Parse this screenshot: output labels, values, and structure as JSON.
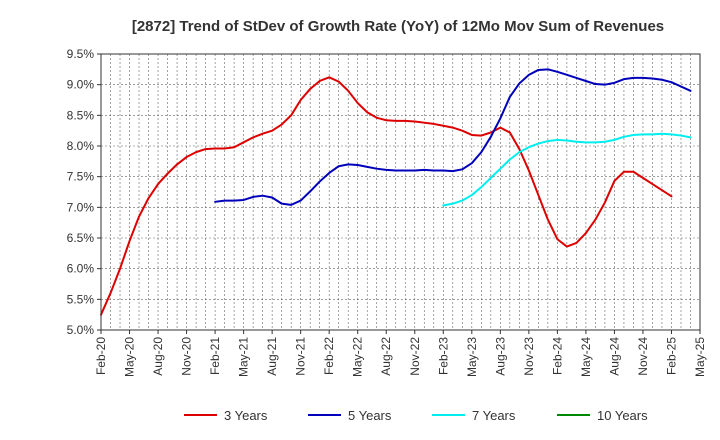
{
  "chart_data": {
    "type": "line",
    "title": "[2872]  Trend of StDev of Growth Rate (YoY) of 12Mo Mov Sum of Revenues",
    "xlabel": "",
    "ylabel": "",
    "ylim": [
      5.0,
      9.5
    ],
    "y_ticks": [
      "5.0%",
      "5.5%",
      "6.0%",
      "6.5%",
      "7.0%",
      "7.5%",
      "8.0%",
      "8.5%",
      "9.0%",
      "9.5%"
    ],
    "x_ticks": [
      "Feb-20",
      "May-20",
      "Aug-20",
      "Nov-20",
      "Feb-21",
      "May-21",
      "Aug-21",
      "Nov-21",
      "Feb-22",
      "May-22",
      "Aug-22",
      "Nov-22",
      "Feb-23",
      "May-23",
      "Aug-23",
      "Nov-23",
      "Feb-24",
      "May-24",
      "Aug-24",
      "Nov-24",
      "Feb-25",
      "May-25"
    ],
    "x_start": "Feb-20",
    "x_months": 63,
    "grid": true,
    "legend_position": "bottom",
    "series": [
      {
        "name": "3 Years",
        "color": "#dd0000",
        "start_index": 0,
        "values": [
          5.25,
          5.6,
          6.0,
          6.45,
          6.85,
          7.15,
          7.38,
          7.55,
          7.7,
          7.82,
          7.9,
          7.95,
          7.96,
          7.96,
          7.98,
          8.06,
          8.14,
          8.2,
          8.25,
          8.35,
          8.5,
          8.75,
          8.93,
          9.06,
          9.12,
          9.05,
          8.9,
          8.7,
          8.55,
          8.46,
          8.42,
          8.41,
          8.41,
          8.4,
          8.38,
          8.36,
          8.33,
          8.3,
          8.25,
          8.18,
          8.17,
          8.22,
          8.3,
          8.22,
          7.95,
          7.6,
          7.2,
          6.8,
          6.48,
          6.36,
          6.42,
          6.58,
          6.8,
          7.08,
          7.43,
          7.58,
          7.58,
          7.48,
          7.38,
          7.28,
          7.18
        ]
      },
      {
        "name": "5 Years",
        "color": "#0000bb",
        "start_index": 12,
        "values": [
          7.09,
          7.11,
          7.11,
          7.12,
          7.17,
          7.19,
          7.16,
          7.06,
          7.04,
          7.11,
          7.26,
          7.42,
          7.56,
          7.67,
          7.7,
          7.69,
          7.66,
          7.63,
          7.61,
          7.6,
          7.6,
          7.6,
          7.61,
          7.6,
          7.6,
          7.59,
          7.62,
          7.72,
          7.9,
          8.15,
          8.45,
          8.8,
          9.02,
          9.16,
          9.24,
          9.25,
          9.21,
          9.16,
          9.11,
          9.06,
          9.01,
          9.0,
          9.03,
          9.09,
          9.11,
          9.11,
          9.1,
          9.08,
          9.04,
          8.97,
          8.9
        ]
      },
      {
        "name": "7 Years",
        "color": "#00eeee",
        "start_index": 36,
        "values": [
          7.03,
          7.06,
          7.11,
          7.2,
          7.33,
          7.48,
          7.63,
          7.78,
          7.9,
          7.98,
          8.04,
          8.08,
          8.1,
          8.09,
          8.07,
          8.06,
          8.06,
          8.07,
          8.1,
          8.15,
          8.18,
          8.19,
          8.19,
          8.2,
          8.19,
          8.17,
          8.14
        ]
      },
      {
        "name": "10 Years",
        "color": "#008800",
        "start_index": 0,
        "values": []
      }
    ]
  }
}
